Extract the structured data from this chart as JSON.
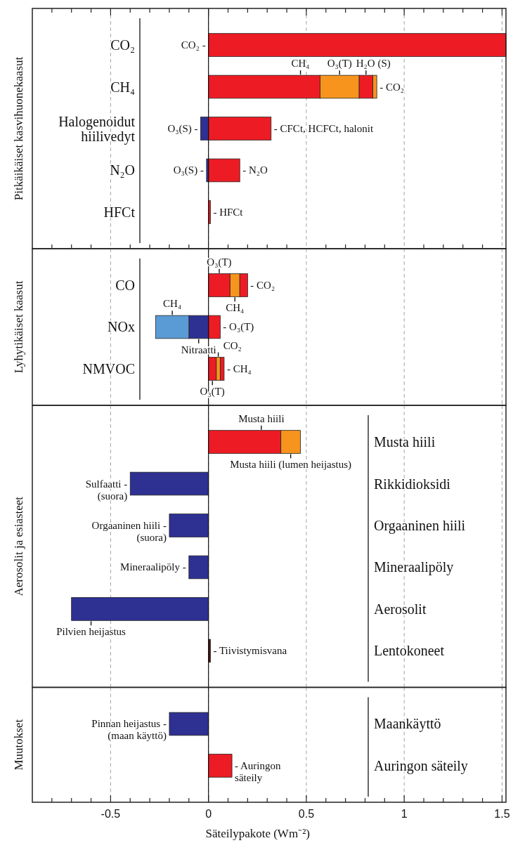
{
  "chart_data": [
    {
      "type": "bar",
      "orientation": "horizontal",
      "stacked": true,
      "title": "Pitkäikäiset kasvihuonekaasut",
      "tick_labels": "y",
      "categories": [
        "CO₂",
        "CH₄",
        "Halogenoidut\nhiilivedyt",
        "N₂O",
        "HFCt"
      ],
      "series": [
        {
          "values": [
            1.52,
            0.57,
            0.32,
            0.16,
            0.01
          ],
          "colors": [
            "#ed1c24",
            "#ed1c24",
            "#ed1c24",
            "#ed1c24",
            "#ed1c24"
          ]
        },
        {
          "values": [
            null,
            0.2,
            -0.04,
            -0.01,
            null
          ],
          "colors": [
            null,
            "#f7941d",
            "#2e3192",
            "#2e3192",
            null
          ]
        },
        {
          "values": [
            null,
            0.07,
            null,
            null,
            null
          ],
          "colors": [
            null,
            "#ed1c24",
            null,
            null,
            null
          ]
        },
        {
          "values": [
            null,
            0.02,
            null,
            null,
            null
          ],
          "colors": [
            null,
            "#f7941d",
            null,
            null,
            null
          ]
        }
      ],
      "xlim": [
        -0.9,
        1.52
      ],
      "xticks": [
        {
          "value": -0.8,
          "label": null
        },
        {
          "value": -0.7,
          "label": null
        },
        {
          "value": -0.6,
          "label": null
        },
        -0.5,
        {
          "value": -0.4,
          "label": null
        },
        {
          "value": -0.3,
          "label": null
        },
        {
          "value": -0.2,
          "label": null
        },
        {
          "value": -0.1,
          "label": null
        },
        0,
        {
          "value": 0.1,
          "label": null
        },
        {
          "value": 0.2,
          "label": null
        },
        {
          "value": 0.3,
          "label": null
        },
        {
          "value": 0.4,
          "label": null
        },
        0.5,
        {
          "value": 0.6,
          "label": null
        },
        {
          "value": 0.7,
          "label": null
        },
        {
          "value": 0.8,
          "label": null
        },
        {
          "value": 0.9,
          "label": null
        },
        1,
        {
          "value": 1.1,
          "label": null
        },
        {
          "value": 1.2,
          "label": null
        },
        {
          "value": 1.3,
          "label": null
        },
        {
          "value": 1.4,
          "label": null
        },
        1.5
      ],
      "grid": "x",
      "ref_lines": [
        {
          "axis": "x",
          "value": 0
        }
      ],
      "annotations": [
        {
          "text": "CO₂ -",
          "x": 0,
          "y": "CO₂"
        },
        {
          "text": "CH₄",
          "x": 0.57,
          "y": "CH₄"
        },
        {
          "text": "O₃(T)",
          "x": 0.77,
          "y": "CH₄"
        },
        {
          "text": "H₂O (S)",
          "x": 0.84,
          "y": "CH₄"
        },
        {
          "text": "- CO₂",
          "x": 0.86,
          "y": "CH₄"
        },
        {
          "text": "O₃(S) -",
          "x": -0.04,
          "y": "Halogenoidut\nhiilivedyt"
        },
        {
          "text": "- CFCt, HCFCt, halonit",
          "x": 0.32,
          "y": "Halogenoidut\nhiilivedyt"
        },
        {
          "text": "O₃(S) -",
          "x": -0.01,
          "y": "N₂O"
        },
        {
          "text": "- N₂O",
          "x": 0.16,
          "y": "N₂O"
        },
        {
          "text": "- HFCt",
          "x": 0.01,
          "y": "HFCt"
        }
      ]
    },
    {
      "type": "bar",
      "orientation": "horizontal",
      "stacked": true,
      "title": "Lyhytikäiset kaasut",
      "tick_labels": "y",
      "categories": [
        "CO",
        "NOx",
        "NMVOC"
      ],
      "series": [
        {
          "values": [
            0.11,
            0.06,
            0.04
          ],
          "colors": [
            "#ed1c24",
            "#ed1c24",
            "#ed1c24"
          ]
        },
        {
          "values": [
            0.05,
            -0.1,
            0.02
          ],
          "colors": [
            "#f7941d",
            "#2e3192",
            "#f7941d"
          ]
        },
        {
          "values": [
            0.04,
            -0.17,
            0.02
          ],
          "colors": [
            "#ed1c24",
            "#5b9bd5",
            "#ed1c24"
          ]
        }
      ],
      "xlim": [
        -0.9,
        1.52
      ],
      "xticks": [
        -0.5,
        0,
        0.5,
        1,
        1.5
      ],
      "grid": "x",
      "ref_lines": [
        {
          "axis": "x",
          "value": 0
        }
      ],
      "annotations": [
        {
          "text": "O₃(T)",
          "x": 0.11,
          "y": "CO"
        },
        {
          "text": "- CO₂",
          "x": 0.2,
          "y": "CO"
        },
        {
          "text": "CH₄",
          "x": 0.16,
          "y": "CO"
        },
        {
          "text": "CH₄",
          "x": -0.27,
          "y": "NOx"
        },
        {
          "text": "- O₃(T)",
          "x": 0.06,
          "y": "NOx"
        },
        {
          "text": "Nitraatti",
          "x": -0.1,
          "y": "NOx"
        },
        {
          "text": "CO₂",
          "x": 0.06,
          "y": "NMVOC"
        },
        {
          "text": "- CH₄",
          "x": 0.08,
          "y": "NMVOC"
        },
        {
          "text": "O₃(T)",
          "x": 0.04,
          "y": "NMVOC"
        }
      ]
    },
    {
      "type": "bar",
      "orientation": "horizontal",
      "stacked": true,
      "title": "Aerosolit ja esiasteet",
      "tick_labels": "y",
      "categories": [
        "Musta hiili",
        "Rikkidioksidi",
        "Orgaaninen hiili",
        "Mineraalipöly",
        "Aerosolit",
        "Lentokoneet"
      ],
      "series": [
        {
          "values": [
            0.37,
            -0.4,
            -0.2,
            -0.1,
            -0.7,
            0.01
          ],
          "colors": [
            "#ed1c24",
            "#2e3192",
            "#2e3192",
            "#2e3192",
            "#2e3192",
            "#4d1414"
          ]
        },
        {
          "values": [
            0.1,
            null,
            null,
            null,
            null,
            null
          ],
          "colors": [
            "#f7941d",
            null,
            null,
            null,
            null,
            null
          ]
        }
      ],
      "xlim": [
        -0.9,
        1.52
      ],
      "xticks": [
        -0.5,
        0,
        0.5,
        1,
        1.5
      ],
      "grid": "x",
      "ref_lines": [
        {
          "axis": "x",
          "value": 0
        }
      ],
      "annotations": [
        {
          "text": "Musta hiili",
          "x": 0.37,
          "y": "Musta hiili"
        },
        {
          "text": "Musta hiili (lumen heijastus)",
          "x": 0.47,
          "y": "Musta hiili"
        },
        {
          "text": "Sulfaatti -\n(suora)",
          "x": -0.4,
          "y": "Rikkidioksidi"
        },
        {
          "text": "Orgaaninen hiili -\n(suora)",
          "x": -0.2,
          "y": "Orgaaninen hiili"
        },
        {
          "text": "Mineraalipöly -",
          "x": -0.1,
          "y": "Mineraalipöly"
        },
        {
          "text": "Pilvien heijastus",
          "x": -0.7,
          "y": "Aerosolit"
        },
        {
          "text": "- Tiivistymisvana",
          "x": 0.01,
          "y": "Lentokoneet"
        }
      ]
    },
    {
      "type": "bar",
      "orientation": "horizontal",
      "stacked": true,
      "title": "Muutokset",
      "xlabel": "Säteilypakote (Wm⁻²)",
      "categories": [
        "Maankäyttö",
        "Auringon säteily"
      ],
      "series": [
        {
          "values": [
            -0.2,
            0.12
          ],
          "colors": [
            "#2e3192",
            "#ed1c24"
          ]
        }
      ],
      "xlim": [
        -0.9,
        1.52
      ],
      "xticks": [
        {
          "value": -0.8,
          "label": null
        },
        {
          "value": -0.7,
          "label": null
        },
        {
          "value": -0.6,
          "label": null
        },
        -0.5,
        {
          "value": -0.4,
          "label": null
        },
        {
          "value": -0.3,
          "label": null
        },
        {
          "value": -0.2,
          "label": null
        },
        {
          "value": -0.1,
          "label": null
        },
        0,
        {
          "value": 0.1,
          "label": null
        },
        {
          "value": 0.2,
          "label": null
        },
        {
          "value": 0.3,
          "label": null
        },
        {
          "value": 0.4,
          "label": null
        },
        0.5,
        {
          "value": 0.6,
          "label": null
        },
        {
          "value": 0.7,
          "label": null
        },
        {
          "value": 0.8,
          "label": null
        },
        {
          "value": 0.9,
          "label": null
        },
        1,
        {
          "value": 1.1,
          "label": null
        },
        {
          "value": 1.2,
          "label": null
        },
        {
          "value": 1.3,
          "label": null
        },
        {
          "value": 1.4,
          "label": null
        },
        1.5
      ],
      "grid": "x",
      "ref_lines": [
        {
          "axis": "x",
          "value": 0
        }
      ],
      "annotations": [
        {
          "text": "Pinnan heijastus -\n(maan käyttö)",
          "x": -0.2,
          "y": "Maankäyttö"
        },
        {
          "text": "- Auringon\nsäteily",
          "x": 0.12,
          "y": "Auringon säteily"
        }
      ]
    }
  ]
}
